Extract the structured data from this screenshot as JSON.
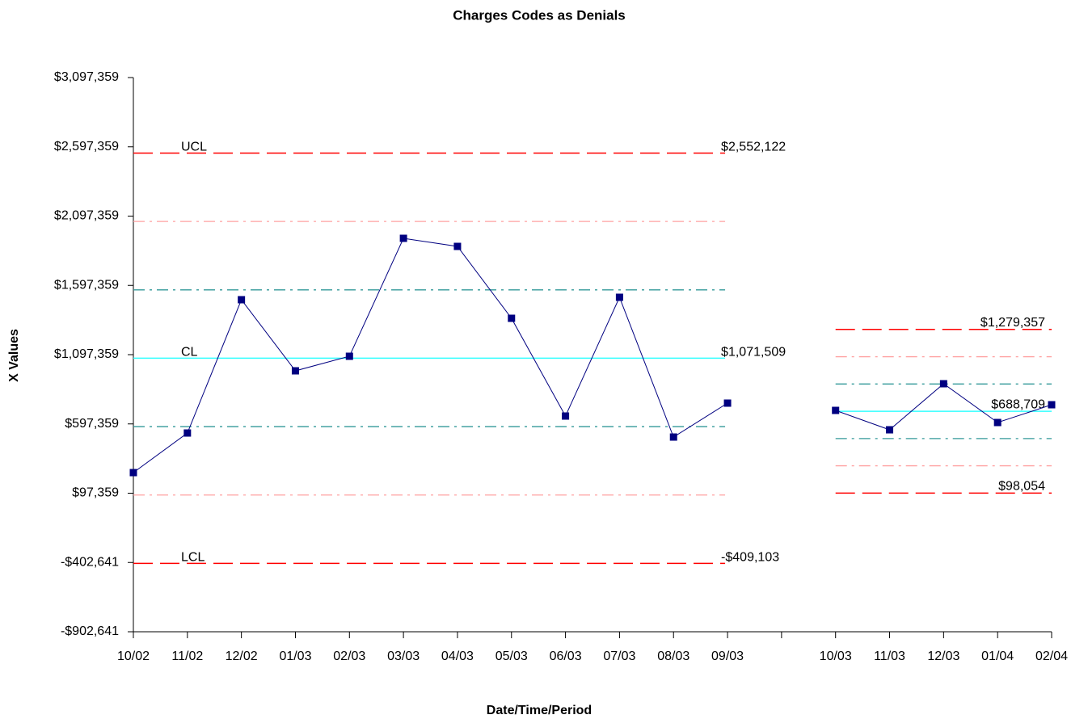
{
  "chart_data": {
    "type": "line",
    "title": "Charges Codes as Denials",
    "x_label": "Date/Time/Period",
    "y_label": "X Values",
    "categories": [
      "10/02",
      "11/02",
      "12/02",
      "01/03",
      "02/03",
      "03/03",
      "04/03",
      "05/03",
      "06/03",
      "07/03",
      "08/03",
      "09/03",
      null,
      "10/03",
      "11/03",
      "12/03",
      "01/04",
      "02/04"
    ],
    "values": [
      246000,
      531700,
      1493900,
      980700,
      1085700,
      1937000,
      1878700,
      1359800,
      654200,
      1511400,
      502600,
      747500,
      null,
      695000,
      555000,
      887400,
      607600,
      735800
    ],
    "color": "#000080",
    "ylim": [
      -902641,
      3097359
    ],
    "yticks": [
      {
        "value": -902641,
        "label": "-$902,641"
      },
      {
        "value": -402641,
        "label": "-$402,641"
      },
      {
        "value": 97359,
        "label": "$97,359"
      },
      {
        "value": 597359,
        "label": "$597,359"
      },
      {
        "value": 1097359,
        "label": "$1,097,359"
      },
      {
        "value": 1597359,
        "label": "$1,597,359"
      },
      {
        "value": 2097359,
        "label": "$2,097,359"
      },
      {
        "value": 2597359,
        "label": "$2,597,359"
      },
      {
        "value": 3097359,
        "label": "$3,097,359"
      }
    ],
    "limit_colors": [
      "#ff0000",
      "#33ffff",
      "#ff0000"
    ],
    "sigma_colors": [
      "#ffa0a0",
      "#339999",
      "#339999",
      "#ffa0a0"
    ],
    "phases": [
      {
        "names": [
          "UCL",
          "CL",
          "LCL"
        ],
        "limits": [
          2552122,
          1071509,
          -409103
        ],
        "value_labels": [
          "$2,552,122",
          "$1,071,509",
          "-$409,103"
        ],
        "sigma": [
          2058585,
          1565047,
          577971,
          84433
        ]
      },
      {
        "limits": [
          1279357,
          688709,
          98054
        ],
        "value_labels": [
          "$1,279,357",
          "$688,709",
          "$98,054"
        ],
        "sigma": [
          1082475,
          885592,
          491826,
          295171
        ]
      }
    ]
  }
}
